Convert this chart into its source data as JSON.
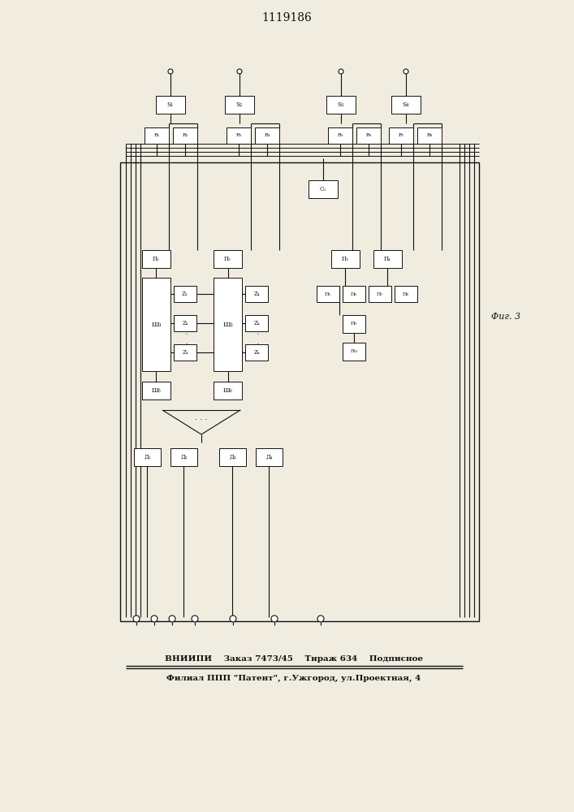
{
  "title": "1119186",
  "fig_label": "Фиг. 3",
  "bottom_line1": "ВНИИПИ    Заказ 7473/45    Тираж 634    Подписное",
  "bottom_line2": "Филиал ППП \"Патент\", г.Ужгород, ул.Проектная, 4",
  "bg_color": "#f0ece0",
  "line_color": "#111111",
  "box_color": "#ffffff",
  "box_edge": "#111111"
}
